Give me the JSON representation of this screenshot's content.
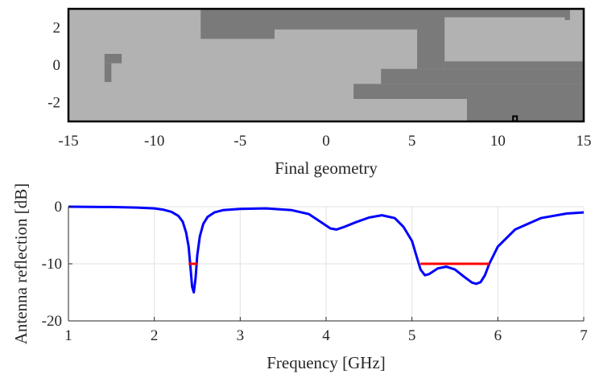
{
  "chart_data": [
    {
      "type": "heatmap",
      "xlabel": "Final geometry",
      "ylabel": "",
      "xlim": [
        -15,
        15
      ],
      "ylim": [
        -3,
        3
      ],
      "xticks": [
        -15,
        -10,
        -5,
        0,
        5,
        10,
        15
      ],
      "xtick_labels": [
        "-15",
        "-10",
        "-5",
        "0",
        "5",
        "10",
        "15"
      ],
      "yticks": [
        2,
        0,
        -2
      ],
      "ytick_labels": [
        "2",
        "0",
        "-2"
      ],
      "grid": false,
      "background_color": "#b2b2b2",
      "metal_color": "#7a7a7a",
      "feed_color": "#000000",
      "metal_regions": [
        {
          "x": [
            -7.3,
            14.2
          ],
          "y": [
            2.55,
            3.0
          ]
        },
        {
          "x": [
            -7.3,
            -3.0
          ],
          "y": [
            1.4,
            2.55
          ]
        },
        {
          "x": [
            -3.0,
            5.3
          ],
          "y": [
            1.9,
            2.55
          ]
        },
        {
          "x": [
            5.3,
            6.9
          ],
          "y": [
            -0.2,
            2.55
          ]
        },
        {
          "x": [
            13.9,
            14.2
          ],
          "y": [
            2.4,
            2.55
          ]
        },
        {
          "x": [
            6.9,
            15.0
          ],
          "y": [
            -0.2,
            0.2
          ]
        },
        {
          "x": [
            3.2,
            15.0
          ],
          "y": [
            -1.0,
            -0.2
          ]
        },
        {
          "x": [
            1.6,
            15.0
          ],
          "y": [
            -1.8,
            -1.0
          ]
        },
        {
          "x": [
            8.2,
            15.0
          ],
          "y": [
            -3.0,
            -1.8
          ]
        },
        {
          "x": [
            -12.9,
            -11.9
          ],
          "y": [
            0.1,
            0.6
          ]
        },
        {
          "x": [
            -12.9,
            -12.5
          ],
          "y": [
            -0.9,
            0.1
          ]
        }
      ],
      "feed_point": {
        "x": 11.0,
        "y": -2.85
      }
    },
    {
      "type": "line",
      "xlabel": "Frequency [GHz]",
      "ylabel": "Antenna reflection [dB]",
      "xlim": [
        1,
        7
      ],
      "ylim": [
        -20,
        0
      ],
      "xticks": [
        1,
        2,
        3,
        4,
        5,
        6,
        7
      ],
      "xtick_labels": [
        "1",
        "2",
        "3",
        "4",
        "5",
        "6",
        "7"
      ],
      "yticks": [
        0,
        -10,
        -20
      ],
      "ytick_labels": [
        "0",
        "-10",
        "-20"
      ],
      "grid": true,
      "series": [
        {
          "color": "#0000ff",
          "x": [
            1.0,
            1.5,
            1.8,
            2.0,
            2.1,
            2.2,
            2.28,
            2.33,
            2.37,
            2.4,
            2.42,
            2.44,
            2.46,
            2.48,
            2.5,
            2.53,
            2.57,
            2.62,
            2.7,
            2.8,
            3.0,
            3.3,
            3.6,
            3.8,
            3.95,
            4.05,
            4.12,
            4.2,
            4.35,
            4.5,
            4.65,
            4.8,
            4.9,
            5.0,
            5.05,
            5.1,
            5.15,
            5.2,
            5.3,
            5.4,
            5.5,
            5.6,
            5.7,
            5.75,
            5.8,
            5.85,
            5.9,
            6.0,
            6.2,
            6.5,
            6.8,
            7.0
          ],
          "y": [
            0.0,
            -0.05,
            -0.15,
            -0.3,
            -0.5,
            -0.9,
            -1.6,
            -2.6,
            -4.5,
            -7.0,
            -10.5,
            -14.0,
            -15.0,
            -12.5,
            -8.5,
            -5.2,
            -3.0,
            -1.8,
            -1.0,
            -0.6,
            -0.4,
            -0.3,
            -0.6,
            -1.3,
            -2.8,
            -3.8,
            -4.0,
            -3.6,
            -2.7,
            -1.9,
            -1.5,
            -2.0,
            -3.5,
            -6.0,
            -8.5,
            -11.0,
            -12.0,
            -11.8,
            -10.8,
            -10.5,
            -11.0,
            -12.2,
            -13.3,
            -13.5,
            -13.2,
            -12.0,
            -10.0,
            -7.0,
            -4.0,
            -2.0,
            -1.2,
            -1.0
          ]
        },
        {
          "color": "#ff0000",
          "x": [
            2.4,
            2.5
          ],
          "y": [
            -10.0,
            -10.0
          ]
        },
        {
          "color": "#ff0000",
          "x": [
            5.1,
            5.9
          ],
          "y": [
            -10.0,
            -10.0
          ]
        }
      ]
    }
  ]
}
